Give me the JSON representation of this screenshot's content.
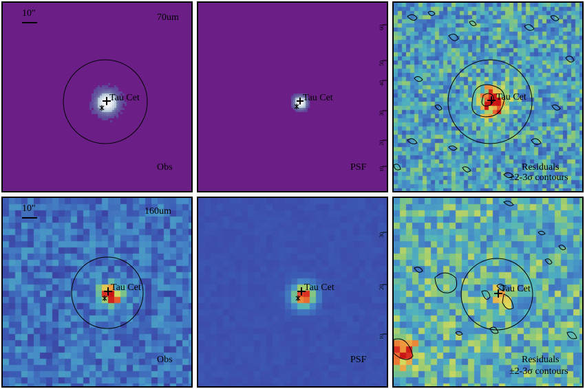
{
  "panels": [
    {
      "row": 0,
      "col": 0,
      "kind": "obs",
      "band": "70um",
      "label": "Obs",
      "target": "Tau Cet",
      "scale": "10\""
    },
    {
      "row": 0,
      "col": 1,
      "kind": "psf",
      "label": "PSF",
      "target": "Tau Cet",
      "ticks": [
        "60",
        "50",
        "40",
        "30",
        "20",
        "10"
      ]
    },
    {
      "row": 0,
      "col": 2,
      "kind": "res",
      "label": "Residuals",
      "sublabel": "±2-3σ contours",
      "target": "Tau Cet"
    },
    {
      "row": 1,
      "col": 0,
      "kind": "obs",
      "band": "160um",
      "label": "Obs",
      "target": "Tau Cet",
      "scale": "10\""
    },
    {
      "row": 1,
      "col": 1,
      "kind": "psf",
      "label": "PSF",
      "target": "Tau Cet",
      "ticks": [
        "30",
        "20",
        "10"
      ]
    },
    {
      "row": 1,
      "col": 2,
      "kind": "res",
      "label": "Residuals",
      "sublabel": "±2-3σ contours",
      "target": "Tau Cet"
    }
  ],
  "colors": {
    "bg_70": "#6a1e86",
    "frame": "#000000",
    "contour": "#000000"
  }
}
